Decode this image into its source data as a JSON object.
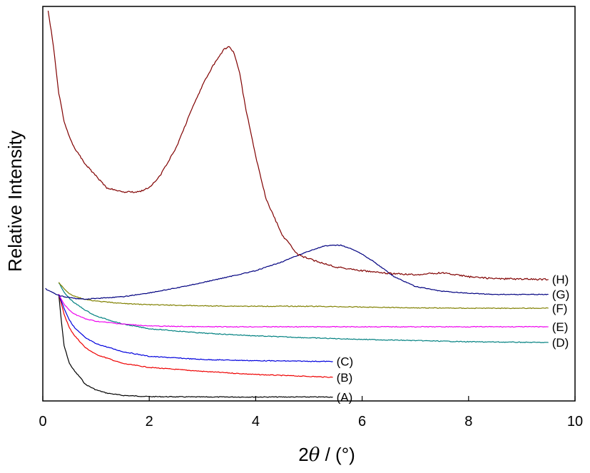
{
  "chart_data": {
    "type": "line",
    "title": "",
    "xlabel": {
      "prefix": "2",
      "symbol": "θ",
      "suffix": " / (°)"
    },
    "ylabel": "Relative Intensity",
    "xlim": [
      0,
      10
    ],
    "ylim": [
      0,
      100
    ],
    "xticks": [
      "0",
      "2",
      "4",
      "6",
      "8",
      "10"
    ],
    "y_tick_labels": false,
    "grid": false,
    "legend": "none",
    "series": [
      {
        "label": "(A)",
        "color": "#000000",
        "x": [
          0.3,
          0.35,
          0.4,
          0.5,
          0.6,
          0.7,
          0.8,
          1.0,
          1.2,
          1.5,
          2.0,
          3.0,
          4.0,
          5.45
        ],
        "y": [
          27,
          20,
          14,
          9.5,
          7.5,
          6,
          4.2,
          2.8,
          2,
          1.4,
          1.1,
          1.0,
          1.0,
          1.0
        ]
      },
      {
        "label": "(B)",
        "color": "#ee0000",
        "x": [
          0.3,
          0.4,
          0.5,
          0.6,
          0.8,
          1.0,
          1.5,
          2.0,
          3.0,
          4.0,
          5.45
        ],
        "y": [
          27,
          22,
          18.5,
          16.5,
          13.5,
          11.8,
          9.5,
          8.5,
          7.5,
          6.7,
          6.0
        ]
      },
      {
        "label": "(C)",
        "color": "#0000dd",
        "x": [
          0.3,
          0.4,
          0.5,
          0.6,
          0.8,
          1.0,
          1.5,
          2.0,
          3.0,
          4.0,
          5.45
        ],
        "y": [
          27,
          23.5,
          20.5,
          18.5,
          16,
          14.5,
          12.5,
          11.3,
          10.5,
          10.2,
          10.0
        ]
      },
      {
        "label": "(D)",
        "color": "#008080",
        "x": [
          0.3,
          0.4,
          0.5,
          0.6,
          0.8,
          1.0,
          1.5,
          2.0,
          3.0,
          4.0,
          5.0,
          6.0,
          7.0,
          8.0,
          9.5
        ],
        "y": [
          30,
          27.5,
          26,
          24.8,
          23,
          21.5,
          19.5,
          18.3,
          17.2,
          16.5,
          16.0,
          15.6,
          15.3,
          15.0,
          14.8
        ]
      },
      {
        "label": "(E)",
        "color": "#ee00ee",
        "x": [
          0.3,
          0.4,
          0.5,
          0.6,
          0.8,
          1.0,
          1.5,
          2.0,
          3.0,
          4.0,
          5.0,
          6.0,
          7.0,
          8.0,
          9.5
        ],
        "y": [
          27,
          24.5,
          23,
          22,
          20.8,
          20.2,
          19.5,
          19.0,
          18.8,
          18.8,
          18.8,
          18.8,
          18.8,
          18.8,
          18.8
        ]
      },
      {
        "label": "(F)",
        "color": "#808000",
        "x": [
          0.3,
          0.4,
          0.5,
          0.6,
          0.8,
          1.0,
          1.5,
          2.0,
          3.0,
          4.0,
          5.0,
          6.0,
          7.0,
          8.0,
          9.5
        ],
        "y": [
          30,
          28.5,
          27.2,
          26.5,
          25.7,
          25.3,
          24.7,
          24.4,
          24.1,
          24.0,
          24.0,
          23.8,
          23.6,
          23.5,
          23.5
        ]
      },
      {
        "label": "(G)",
        "color": "#000080",
        "x": [
          0.05,
          0.1,
          0.2,
          0.3,
          0.4,
          0.6,
          0.8,
          1.0,
          1.5,
          2.0,
          2.5,
          3.0,
          3.5,
          4.0,
          4.5,
          5.0,
          5.3,
          5.6,
          5.9,
          6.2,
          6.6,
          7.0,
          7.5,
          8.0,
          8.5,
          9.5
        ],
        "y": [
          28.5,
          28,
          27.4,
          26.8,
          26.4,
          26.0,
          25.8,
          26.0,
          26.4,
          27.4,
          28.6,
          30.0,
          31.5,
          33.0,
          35.3,
          38.0,
          39.3,
          39.5,
          38.0,
          35.5,
          31.5,
          29.0,
          27.8,
          27.3,
          27.0,
          27.0
        ]
      },
      {
        "label": "(H)",
        "color": "#800000",
        "x": [
          0.1,
          0.2,
          0.3,
          0.4,
          0.5,
          0.6,
          0.8,
          1.0,
          1.2,
          1.5,
          1.8,
          2.0,
          2.2,
          2.5,
          2.8,
          3.0,
          3.2,
          3.4,
          3.5,
          3.6,
          3.7,
          3.8,
          4.0,
          4.2,
          4.5,
          4.8,
          5.0,
          5.5,
          6.0,
          6.5,
          7.0,
          7.5,
          8.0,
          8.5,
          9.5
        ],
        "y": [
          99,
          90,
          78,
          71,
          67,
          64,
          60,
          57,
          54,
          53,
          53,
          54,
          57,
          64,
          74,
          80,
          85,
          89,
          90,
          88,
          83,
          75,
          62,
          51,
          42,
          37,
          36,
          34,
          33,
          32.3,
          32.0,
          32.5,
          31.5,
          31.0,
          30.8
        ]
      }
    ]
  }
}
